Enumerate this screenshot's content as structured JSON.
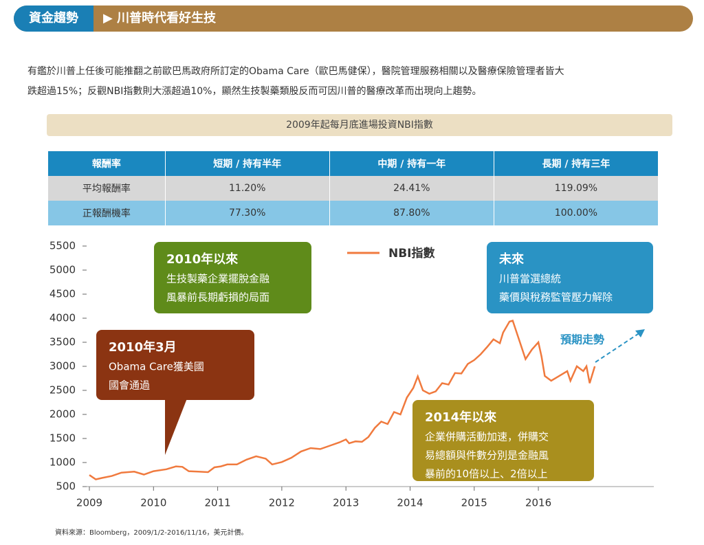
{
  "header": {
    "tag": "資金趨勢",
    "title": "▶ 川普時代看好生技"
  },
  "paragraph": [
    "有鑑於川普上任後可能推翻之前歐巴馬政府所訂定的Obama Care（歐巴馬健保），醫院管理服務相關以及醫療保險管理者皆大",
    "跌超過15%；反觀NBI指數則大漲超過10%，顯然生技製藥類股反而可因川普的醫療改革而出現向上趨勢。"
  ],
  "table": {
    "caption": "2009年起每月底進場投資NBI指數",
    "header": [
      "報酬率",
      "短期 / 持有半年",
      "中期 / 持有一年",
      "長期 / 持有三年"
    ],
    "rows": [
      [
        "平均報酬率",
        "11.20%",
        "24.41%",
        "119.09%"
      ],
      [
        "正報酬機率",
        "77.30%",
        "87.80%",
        "100.00%"
      ]
    ]
  },
  "chart_data": {
    "type": "line",
    "x": [
      2009.0,
      2009.1,
      2009.2,
      2009.35,
      2009.5,
      2009.7,
      2009.85,
      2010.0,
      2010.2,
      2010.35,
      2010.45,
      2010.55,
      2010.7,
      2010.85,
      2010.95,
      2011.05,
      2011.15,
      2011.3,
      2011.45,
      2011.6,
      2011.75,
      2011.85,
      2012.0,
      2012.15,
      2012.3,
      2012.45,
      2012.6,
      2012.75,
      2012.9,
      2013.0,
      2013.05,
      2013.15,
      2013.25,
      2013.35,
      2013.45,
      2013.55,
      2013.65,
      2013.75,
      2013.85,
      2013.95,
      2014.05,
      2014.12,
      2014.2,
      2014.3,
      2014.4,
      2014.5,
      2014.6,
      2014.7,
      2014.8,
      2014.9,
      2015.0,
      2015.1,
      2015.2,
      2015.3,
      2015.4,
      2015.45,
      2015.55,
      2015.6,
      2015.7,
      2015.8,
      2015.9,
      2016.0,
      2016.05,
      2016.1,
      2016.2,
      2016.3,
      2016.45,
      2016.5,
      2016.6,
      2016.7,
      2016.75,
      2016.8,
      2016.88
    ],
    "series": [
      {
        "name": "NBI指數",
        "color": "#f07a3e",
        "values": [
          740,
          650,
          680,
          720,
          790,
          810,
          750,
          820,
          860,
          920,
          910,
          820,
          810,
          800,
          900,
          920,
          960,
          960,
          1060,
          1130,
          1080,
          960,
          1010,
          1100,
          1230,
          1300,
          1280,
          1350,
          1420,
          1480,
          1400,
          1440,
          1430,
          1530,
          1720,
          1850,
          1800,
          2050,
          2000,
          2350,
          2550,
          2790,
          2500,
          2430,
          2480,
          2650,
          2620,
          2860,
          2850,
          3050,
          3130,
          3250,
          3400,
          3560,
          3480,
          3700,
          3930,
          3950,
          3550,
          3150,
          3350,
          3500,
          3200,
          2800,
          2700,
          2780,
          2900,
          2700,
          3000,
          2900,
          3000,
          2650,
          3000
        ]
      }
    ],
    "xlim": [
      2009,
      2017.8
    ],
    "xticks": [
      2009,
      2010,
      2011,
      2012,
      2013,
      2014,
      2015,
      2016
    ],
    "ylim": [
      500,
      5500
    ],
    "yticks": [
      500,
      1000,
      1500,
      2000,
      2500,
      3000,
      3500,
      4000,
      4500,
      5000,
      5500
    ],
    "annotations": [
      {
        "title": "2010年以來",
        "lines": [
          "生技製藥企業擺脫金融",
          "風暴前長期虧損的局面"
        ],
        "color": "#5f8b1a"
      },
      {
        "title": "2010年3月",
        "lines": [
          "Obama Care獲美國",
          "國會通過"
        ],
        "color": "#8b3412"
      },
      {
        "title": "未來",
        "lines": [
          "川普當選總統",
          "藥價與稅務監管壓力解除"
        ],
        "color": "#2a93c4"
      },
      {
        "title": "2014年以來",
        "lines": [
          "企業併購活動加速，併購交",
          "易總額與件數分別是金融風",
          "暴前的10倍以上、2倍以上"
        ],
        "color": "#a98f1e"
      }
    ],
    "trend_label": "預期走勢"
  },
  "source": "資料來源：Bloomberg，2009/1/2-2016/11/16，美元計價。"
}
